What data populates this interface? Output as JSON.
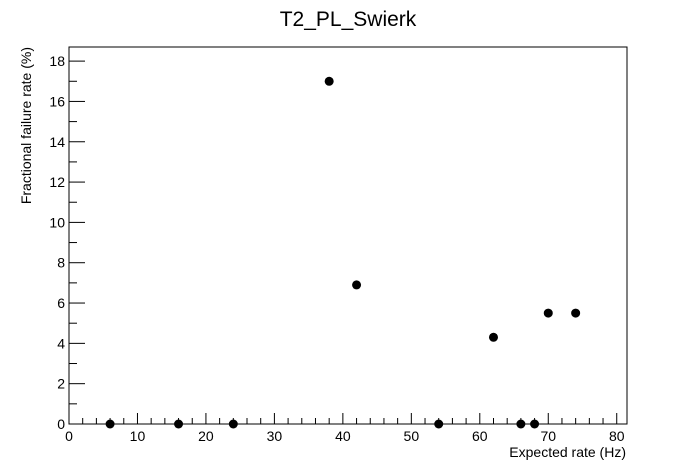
{
  "chart_data": {
    "type": "scatter",
    "title": "T2_PL_Swierk",
    "xlabel": "Expected rate (Hz)",
    "ylabel": "Fractional failure rate (%)",
    "xlim": [
      0,
      81.5
    ],
    "ylim": [
      0,
      18.7
    ],
    "x_ticks": [
      0,
      10,
      20,
      30,
      40,
      50,
      60,
      70,
      80
    ],
    "y_ticks": [
      0,
      2,
      4,
      6,
      8,
      10,
      12,
      14,
      16,
      18
    ],
    "grid": false,
    "legend": "none",
    "marker_color": "#000000",
    "points": [
      {
        "x": 6,
        "y": 0
      },
      {
        "x": 16,
        "y": 0
      },
      {
        "x": 24,
        "y": 0
      },
      {
        "x": 38,
        "y": 17.0
      },
      {
        "x": 42,
        "y": 6.9
      },
      {
        "x": 54,
        "y": 0
      },
      {
        "x": 62,
        "y": 4.3
      },
      {
        "x": 66,
        "y": 0
      },
      {
        "x": 68,
        "y": 0
      },
      {
        "x": 70,
        "y": 5.5
      },
      {
        "x": 74,
        "y": 5.5
      }
    ]
  }
}
